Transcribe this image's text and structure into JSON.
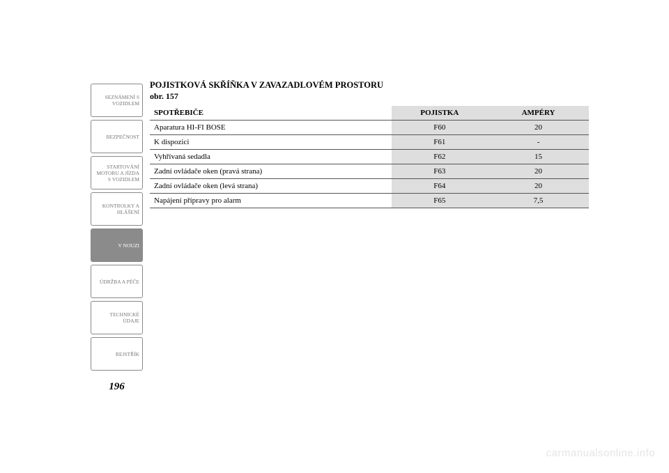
{
  "sidebar": {
    "tabs": [
      {
        "label": "SEZNÁMENÍ S\nVOZIDLEM",
        "active": false
      },
      {
        "label": "BEZPEČNOST",
        "active": false
      },
      {
        "label": "STARTOVÁNÍ\nMOTORU A JÍZDA\nS VOZIDLEM",
        "active": false
      },
      {
        "label": "KONTROLKY A\nHLÁŠENÍ",
        "active": false
      },
      {
        "label": "V NOUZI",
        "active": true
      },
      {
        "label": "ÚDRŽBA A PÉČE",
        "active": false
      },
      {
        "label": "TECHNICKÉ\nÚDAJE",
        "active": false
      },
      {
        "label": "REJSTŘÍK",
        "active": false
      }
    ]
  },
  "content": {
    "heading_main": "POJISTKOVÁ SKŘÍŇKA V ZAVAZADLOVÉM PROSTORU",
    "heading_sub": "obr. 157",
    "table": {
      "columns": [
        "SPOTŘEBIČE",
        "POJISTKA",
        "AMPÉRY"
      ],
      "rows": [
        [
          "Aparatura HI-FI BOSE",
          "F60",
          "20"
        ],
        [
          "K dispozici",
          "F61",
          "-"
        ],
        [
          "Vyhřívaná sedadla",
          "F62",
          "15"
        ],
        [
          "Zadní ovládače oken (pravá strana)",
          "F63",
          "20"
        ],
        [
          "Zadní ovládače oken (levá strana)",
          "F64",
          "20"
        ],
        [
          "Napájení přípravy pro alarm",
          "F65",
          "7,5"
        ]
      ]
    }
  },
  "page_number": "196",
  "watermark": "carmanualsonline.info"
}
